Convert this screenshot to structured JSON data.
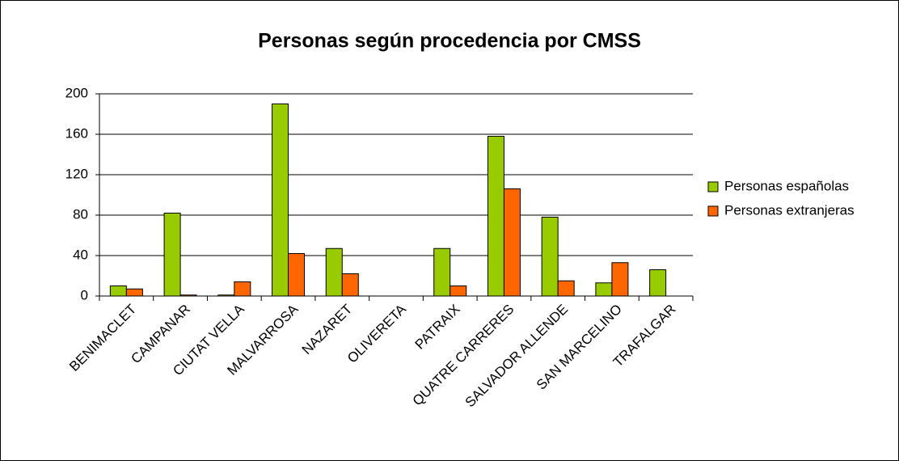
{
  "chart_data": {
    "type": "bar",
    "title": "Personas según procedencia por CMSS",
    "categories": [
      "BENIMACLET",
      "CAMPANAR",
      "CIUTAT VELLA",
      "MALVARROSA",
      "NAZARET",
      "OLIVERETA",
      "PATRAIX",
      "QUATRE CARRERES",
      "SALVADOR ALLENDE",
      "SAN MARCELINO",
      "TRAFALGAR"
    ],
    "series": [
      {
        "name": "Personas españolas",
        "color": "#99cc00",
        "values": [
          10,
          82,
          1,
          190,
          47,
          0,
          47,
          158,
          78,
          13,
          26
        ]
      },
      {
        "name": "Personas extranjeras",
        "color": "#ff6600",
        "values": [
          7,
          1,
          14,
          42,
          22,
          0,
          10,
          106,
          15,
          33,
          0
        ]
      }
    ],
    "ylim": [
      0,
      200
    ],
    "yticks": [
      0,
      40,
      80,
      120,
      160,
      200
    ],
    "grid": true,
    "legend": "right"
  }
}
